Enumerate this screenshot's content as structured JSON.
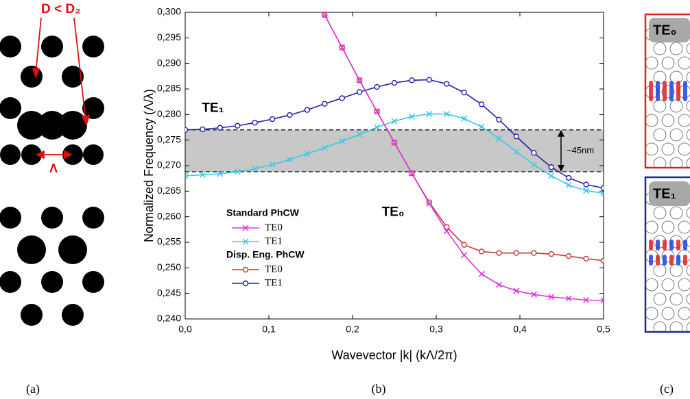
{
  "chart_data": {
    "type": "line",
    "y_label": "Normalized Frequency (Λ/λ)",
    "x_label": "Wavevector |k| (kΛ/2π)",
    "x": [
      0,
      0.0208,
      0.0417,
      0.0625,
      0.0833,
      0.1042,
      0.125,
      0.1458,
      0.1667,
      0.1875,
      0.2083,
      0.2292,
      0.25,
      0.2708,
      0.2917,
      0.3125,
      0.3333,
      0.3542,
      0.375,
      0.3958,
      0.4167,
      0.4375,
      0.4583,
      0.4792,
      0.5
    ],
    "xlim": [
      0,
      0.5
    ],
    "xticks": [
      {
        "value": 0,
        "label": "0,0"
      },
      {
        "value": 0.1,
        "label": "0,1"
      },
      {
        "value": 0.2,
        "label": "0,2"
      },
      {
        "value": 0.3,
        "label": "0,3"
      },
      {
        "value": 0.4,
        "label": "0,4"
      },
      {
        "value": 0.5,
        "label": "0,5"
      }
    ],
    "ylim": [
      0.24,
      0.3
    ],
    "yticks": [
      {
        "value": 0.24,
        "label": "0,240"
      },
      {
        "value": 0.245,
        "label": "0,245"
      },
      {
        "value": 0.25,
        "label": "0,250"
      },
      {
        "value": 0.255,
        "label": "0,255"
      },
      {
        "value": 0.26,
        "label": "0,260"
      },
      {
        "value": 0.265,
        "label": "0,265"
      },
      {
        "value": 0.27,
        "label": "0,270"
      },
      {
        "value": 0.275,
        "label": "0,275"
      },
      {
        "value": 0.28,
        "label": "0,280"
      },
      {
        "value": 0.285,
        "label": "0,285"
      },
      {
        "value": 0.29,
        "label": "0,290"
      },
      {
        "value": 0.295,
        "label": "0,295"
      },
      {
        "value": 0.3,
        "label": "0,300"
      }
    ],
    "legend_position": "lower left",
    "legend_groups": [
      "Standard PhCW",
      "Disp. Eng. PhCW"
    ],
    "series": [
      {
        "name": "TE0",
        "group": 0,
        "marker": "x",
        "color": "#e032e0",
        "values": [
          null,
          null,
          null,
          null,
          null,
          null,
          null,
          null,
          0.2995,
          0.2931,
          0.2867,
          0.2806,
          0.2745,
          0.2685,
          0.2626,
          0.2572,
          0.2525,
          0.2488,
          0.2467,
          0.2455,
          0.2448,
          0.2443,
          0.244,
          0.2437,
          0.2436
        ]
      },
      {
        "name": "TE1",
        "group": 0,
        "marker": "x",
        "color": "#3cc8e6",
        "values": [
          0.268,
          0.2682,
          0.2684,
          0.2688,
          0.2694,
          0.2702,
          0.2712,
          0.2723,
          0.2735,
          0.2748,
          0.2761,
          0.2775,
          0.2787,
          0.2796,
          0.2801,
          0.2801,
          0.2792,
          0.2776,
          0.2753,
          0.2727,
          0.2702,
          0.268,
          0.2662,
          0.2651,
          0.2646
        ]
      },
      {
        "name": "TE0",
        "group": 1,
        "marker": "o",
        "color": "#c83232",
        "values": [
          null,
          null,
          null,
          null,
          null,
          null,
          null,
          null,
          0.2995,
          0.2931,
          0.2867,
          0.2806,
          0.2745,
          0.2685,
          0.2628,
          0.258,
          0.2545,
          0.2532,
          0.2529,
          0.2529,
          0.2529,
          0.2527,
          0.2523,
          0.2518,
          0.2514
        ]
      },
      {
        "name": "TE1",
        "group": 1,
        "marker": "o",
        "color": "#1e1eaa",
        "values": [
          0.277,
          0.2771,
          0.2774,
          0.2778,
          0.2784,
          0.2791,
          0.2799,
          0.2809,
          0.2821,
          0.2832,
          0.2844,
          0.2854,
          0.2862,
          0.2867,
          0.2868,
          0.286,
          0.2843,
          0.282,
          0.279,
          0.2757,
          0.2725,
          0.2697,
          0.2676,
          0.2663,
          0.2656
        ]
      }
    ],
    "band": {
      "range": [
        0.2688,
        0.277
      ],
      "label": "~45nm"
    },
    "annotations": [
      {
        "text": "TE₁",
        "x": 0.02,
        "y": 0.2812
      },
      {
        "text": "TE₀",
        "x": 0.235,
        "y": 0.2608
      }
    ]
  },
  "figure": {
    "panel_labels": [
      "(a)",
      "(b)",
      "(c)"
    ],
    "panel_a": {
      "diameter_label": "D < D₂",
      "period_label": "Λ"
    },
    "panel_c": {
      "modes": [
        "TE₀",
        "TE₁"
      ]
    }
  }
}
